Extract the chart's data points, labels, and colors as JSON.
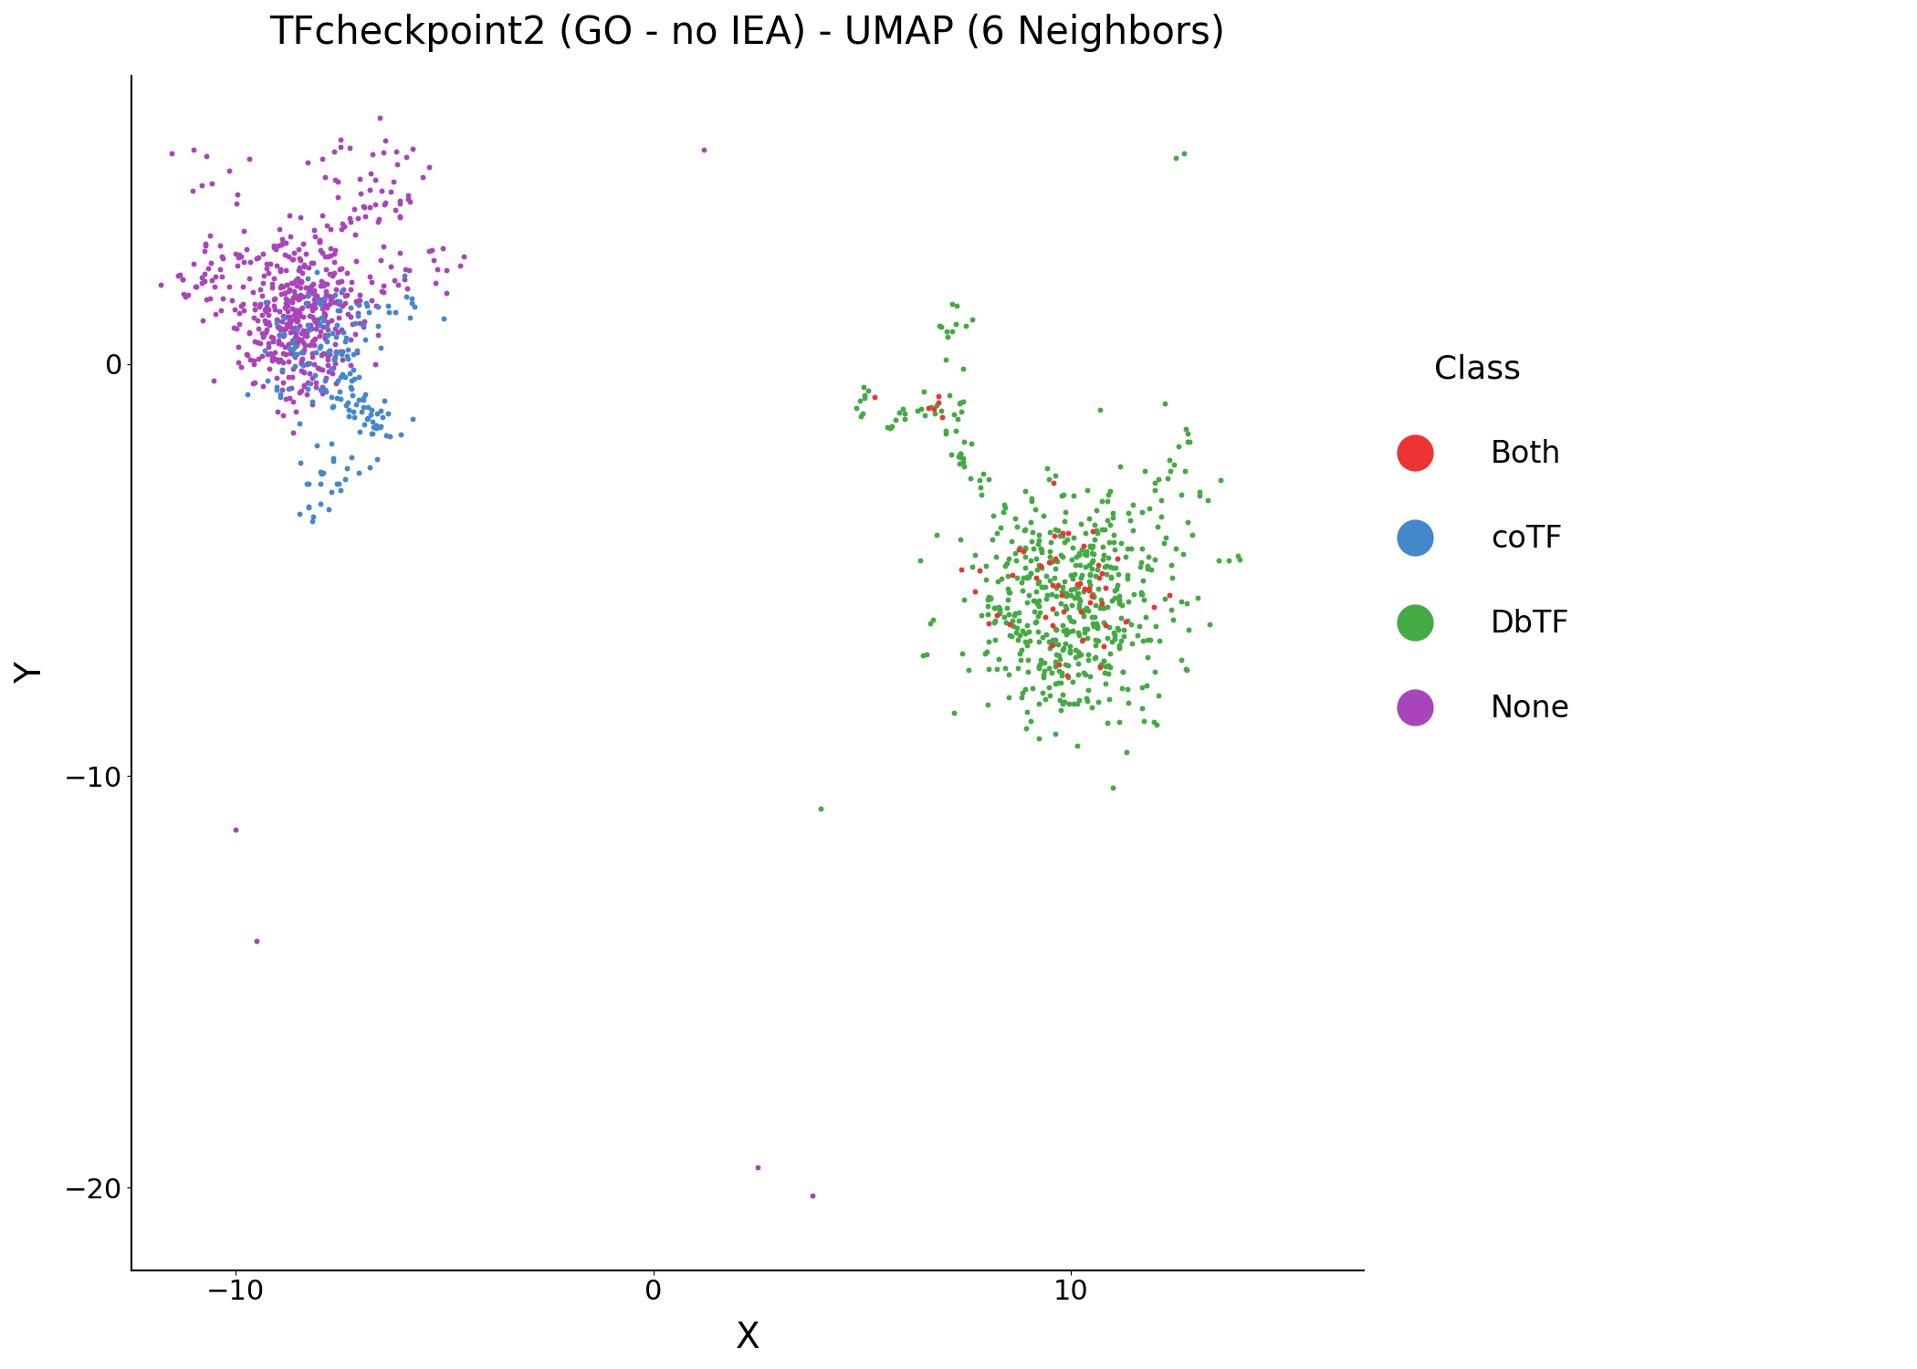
{
  "title": "TFcheckpoint2 (GO - no IEA) - UMAP (6 Neighbors)",
  "xlabel": "X",
  "ylabel": "Y",
  "xlim": [
    -12.5,
    17
  ],
  "ylim": [
    -22,
    7
  ],
  "xticks": [
    -10,
    0,
    10
  ],
  "yticks": [
    0,
    -10,
    -20
  ],
  "classes": [
    "Both",
    "coTF",
    "DbTF",
    "None"
  ],
  "colors": {
    "Both": "#EE3333",
    "coTF": "#4488CC",
    "DbTF": "#44AA44",
    "None": "#AA44BB"
  },
  "point_size": 18,
  "alpha": 1.0,
  "background_color": "#FFFFFF",
  "legend_title": "Class",
  "legend_marker_size": 30,
  "title_fontsize": 30,
  "axis_label_fontsize": 28,
  "tick_fontsize": 22,
  "legend_fontsize": 24,
  "legend_title_fontsize": 26,
  "seed": 42
}
